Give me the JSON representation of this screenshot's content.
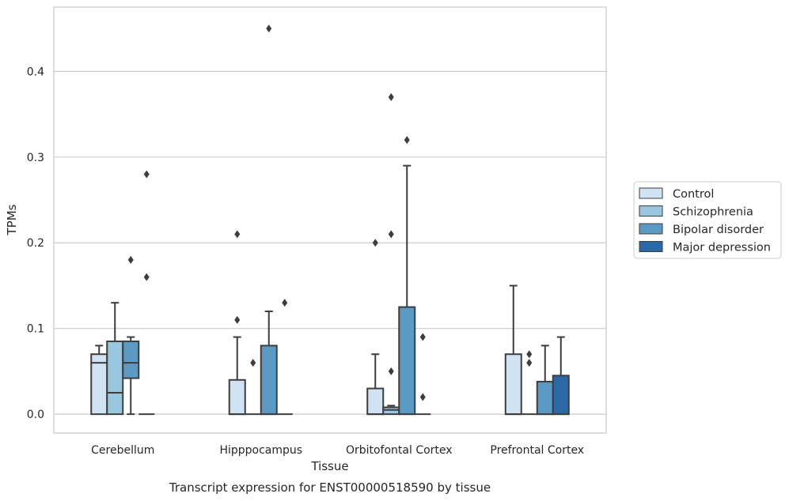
{
  "chart_data": {
    "type": "box",
    "title": "",
    "caption": "Transcript expression for ENST00000518590 by tissue",
    "xlabel": "Tissue",
    "ylabel": "TPMs",
    "ylim": [
      -0.022,
      0.475
    ],
    "yticks": [
      0.0,
      0.1,
      0.2,
      0.3,
      0.4
    ],
    "ytick_labels": [
      "0.0",
      "0.1",
      "0.2",
      "0.3",
      "0.4"
    ],
    "grid": "horizontal",
    "legend_position": "right",
    "categories": [
      "Cerebellum",
      "Hipppocampus",
      "Orbitofontal Cortex",
      "Prefrontal Cortex"
    ],
    "series": [
      {
        "name": "Control",
        "color": "#d1e2f2",
        "boxes": [
          {
            "q1": 0.0,
            "median": 0.06,
            "q3": 0.07,
            "whisker_low": 0.0,
            "whisker_high": 0.08,
            "outliers": []
          },
          {
            "q1": 0.0,
            "median": 0.0,
            "q3": 0.04,
            "whisker_low": 0.0,
            "whisker_high": 0.09,
            "outliers": [
              0.11,
              0.21
            ]
          },
          {
            "q1": 0.0,
            "median": 0.0,
            "q3": 0.03,
            "whisker_low": 0.0,
            "whisker_high": 0.07,
            "outliers": [
              0.2
            ]
          },
          {
            "q1": 0.0,
            "median": 0.0,
            "q3": 0.07,
            "whisker_low": 0.0,
            "whisker_high": 0.15,
            "outliers": []
          }
        ]
      },
      {
        "name": "Schizophrenia",
        "color": "#9ac7e0",
        "boxes": [
          {
            "q1": 0.0,
            "median": 0.025,
            "q3": 0.085,
            "whisker_low": 0.0,
            "whisker_high": 0.13,
            "outliers": []
          },
          {
            "q1": 0.0,
            "median": 0.0,
            "q3": 0.0,
            "whisker_low": 0.0,
            "whisker_high": 0.0,
            "outliers": [
              0.06
            ]
          },
          {
            "q1": 0.0,
            "median": 0.005,
            "q3": 0.008,
            "whisker_low": 0.0,
            "whisker_high": 0.01,
            "outliers": [
              0.05,
              0.21,
              0.37
            ]
          },
          {
            "q1": 0.0,
            "median": 0.0,
            "q3": 0.0,
            "whisker_low": 0.0,
            "whisker_high": 0.0,
            "outliers": [
              0.06,
              0.07
            ]
          }
        ]
      },
      {
        "name": "Bipolar disorder",
        "color": "#5a9ac5",
        "boxes": [
          {
            "q1": 0.042,
            "median": 0.06,
            "q3": 0.085,
            "whisker_low": 0.0,
            "whisker_high": 0.09,
            "outliers": [
              0.18
            ]
          },
          {
            "q1": 0.0,
            "median": 0.0,
            "q3": 0.08,
            "whisker_low": 0.0,
            "whisker_high": 0.12,
            "outliers": [
              0.45
            ]
          },
          {
            "q1": 0.0,
            "median": 0.0,
            "q3": 0.125,
            "whisker_low": 0.0,
            "whisker_high": 0.29,
            "outliers": [
              0.32
            ]
          },
          {
            "q1": 0.0,
            "median": 0.0,
            "q3": 0.038,
            "whisker_low": 0.0,
            "whisker_high": 0.08,
            "outliers": []
          }
        ]
      },
      {
        "name": "Major depression",
        "color": "#2a68a8",
        "boxes": [
          {
            "q1": 0.0,
            "median": 0.0,
            "q3": 0.0,
            "whisker_low": 0.0,
            "whisker_high": 0.0,
            "outliers": [
              0.16,
              0.28
            ]
          },
          {
            "q1": 0.0,
            "median": 0.0,
            "q3": 0.0,
            "whisker_low": 0.0,
            "whisker_high": 0.0,
            "outliers": [
              0.13
            ]
          },
          {
            "q1": 0.0,
            "median": 0.0,
            "q3": 0.0,
            "whisker_low": 0.0,
            "whisker_high": 0.0,
            "outliers": [
              0.02,
              0.09
            ]
          },
          {
            "q1": 0.0,
            "median": 0.0,
            "q3": 0.045,
            "whisker_low": 0.0,
            "whisker_high": 0.09,
            "outliers": []
          }
        ]
      }
    ],
    "colors": {
      "box_edge": "#3d3d3d",
      "grid": "#cccccc",
      "frame": "#cccccc"
    }
  }
}
